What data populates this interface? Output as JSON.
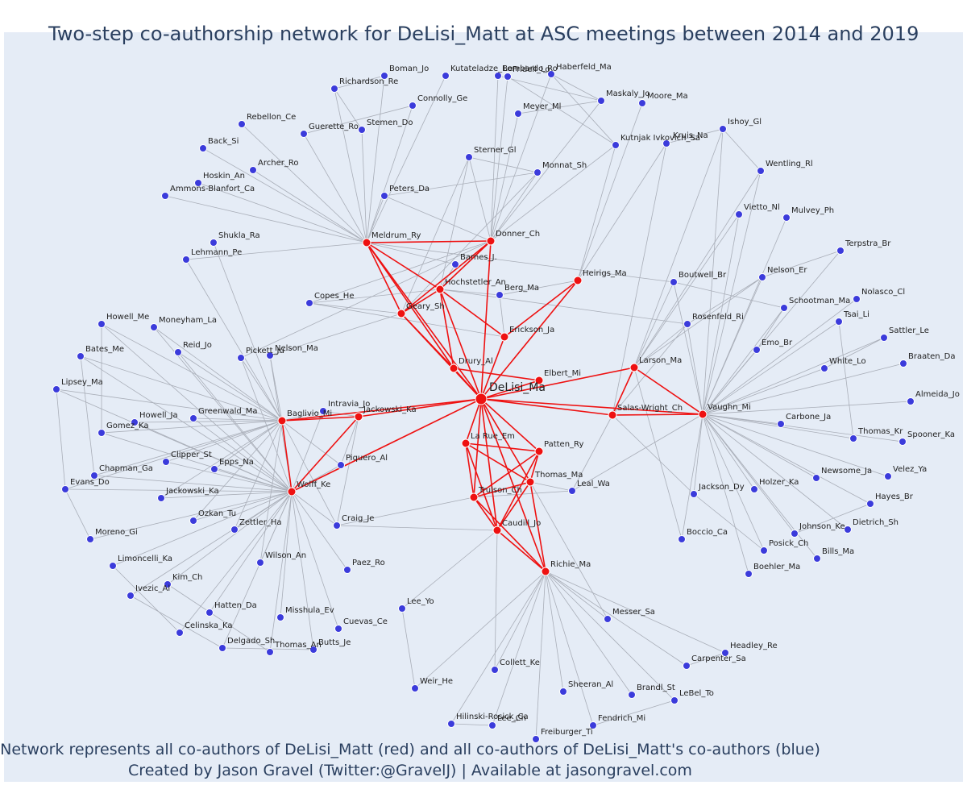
{
  "title": "Two-step co-authorship network for DeLisi_Matt at ASC meetings between 2014 and 2019",
  "caption": {
    "line1": "Network represents all co-authors of DeLisi_Matt (red) and all co-authors of DeLisi_Matt's co-authors (blue)",
    "line2": "Created by Jason Gravel (Twitter:@GravelJ) | Available at jasongravel.com"
  },
  "colors": {
    "background": "#e5ecf6",
    "first_degree": "#ee1111",
    "second_degree": "#3b3bdb",
    "edge_red": "#ee1111",
    "edge_grey": "#a9aeb8"
  },
  "chart_data": {
    "type": "network",
    "focal": "DeLisi_Ma",
    "first_degree": [
      "Meldrum_Ry",
      "Donner_Ch",
      "Hochstetler_An",
      "Geary_Sh",
      "Erickson_Ja",
      "Heirigs_Ma",
      "Drury_Al",
      "Elbert_Mi",
      "Jackowski_Ka",
      "Baglivio_Mi",
      "Larson_Ma",
      "Salas-Wright_Ch",
      "Vaughn_Mi",
      "Wolff_Ke",
      "La Rue_Em",
      "Patten_Ry",
      "Thomas_Ma",
      "Trulson_Ch",
      "Caudill_Jo",
      "Richie_Ma"
    ],
    "second_degree": [
      "Kutateladze_Be",
      "Lombardo_Ro",
      "Fridell_Lo",
      "Haberfeld_Ma",
      "Boman_Jo",
      "Richardson_Re",
      "Maskaly_Jo",
      "Moore_Ma",
      "Connolly_Ge",
      "Meyer_Ml",
      "Rebellon_Ce",
      "Guerette_Ro",
      "Stemen_Do",
      "Kutnjak Ivkovich_Sa",
      "Kruis_Na",
      "Ishoy_Gl",
      "Back_Si",
      "Sterner_Gl",
      "Archer_Ro",
      "Monnat_Sh",
      "Wentling_Rl",
      "Hoskin_An",
      "Ammons-Blanfort_Ca",
      "Peters_Da",
      "Vietto_Nl",
      "Mulvey_Ph",
      "Shukla_Ra",
      "Lehmann_Pe",
      "Terpstra_Br",
      "Barnes_J.",
      "Nelson_Er",
      "Boutwell_Br",
      "Nolasco_Cl",
      "Berg_Ma",
      "Schootman_Ma",
      "Copes_He",
      "Tsai_Li",
      "Rosenfeld_Ri",
      "Howell_Me",
      "Moneyham_La",
      "Sattler_Le",
      "Bates_Me",
      "Reid_Jo",
      "Emo_Br",
      "Pickett_Ju",
      "Nelson_Ma",
      "Braaten_Da",
      "White_Lo",
      "Lipsey_Ma",
      "Almeida_Jo",
      "Intravia_Jo",
      "Greenwald_Ma",
      "Howell_Ja",
      "Gomez_Ka",
      "Carbone_Ja",
      "Thomas_Kr",
      "Spooner_Ka",
      "Clipper_St",
      "Epps_Na",
      "Chapman_Ga",
      "Evans_Do",
      "Jackowski_Ka",
      "Piquero_Al",
      "Newsome_Ja",
      "Velez_Ya",
      "Leal_Wa",
      "Jackson_Dy",
      "Holzer_Ka",
      "Hayes_Br",
      "Ozkan_Tu",
      "Zettler_Ha",
      "Craig_Je",
      "Johnson_Ke",
      "Dietrich_Sh",
      "Moreno_Gi",
      "Boccio_Ca",
      "Posick_Ch",
      "Bills_Ma",
      "Wilson_An",
      "Paez_Ro",
      "Limoncelli_Ka",
      "Boehler_Ma",
      "Kim_Ch",
      "Ivezic_Al",
      "Lee_Yo",
      "Hatten_Da",
      "Misshula_Ev",
      "Messer_Sa",
      "Cuevas_Ce",
      "Celinska_Ka",
      "Delgado_Sh",
      "Thomas_An",
      "Butts_Je",
      "Headley_Re",
      "Carpenter_Sa",
      "Collett_Ke",
      "Weir_He",
      "Sheeran_Al",
      "Brandl_St",
      "LeBel_To",
      "Hilinski-Rosick_Ca",
      "Lee_Ch",
      "Fendrich_Mi",
      "Freiburger_Ti"
    ]
  }
}
